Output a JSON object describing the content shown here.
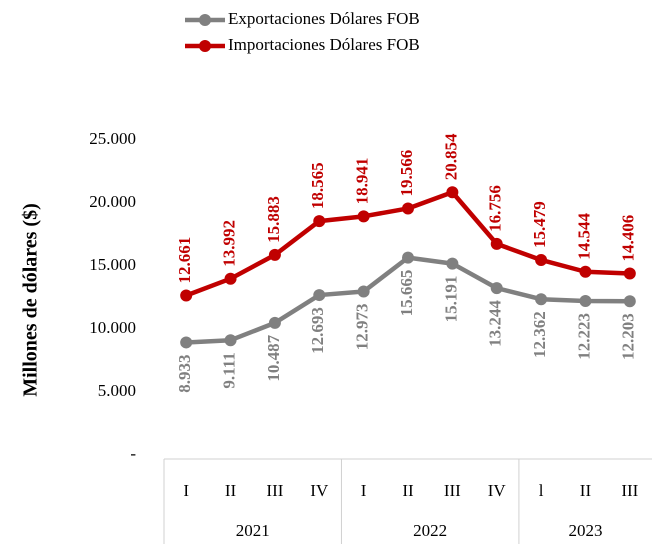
{
  "chart_data": {
    "type": "line",
    "y_axis_label": "Millones de dólares ($)",
    "groups": [
      {
        "name": "2021",
        "categories": [
          "I",
          "II",
          "III",
          "IV"
        ]
      },
      {
        "name": "2022",
        "categories": [
          "I",
          "II",
          "III",
          "IV"
        ]
      },
      {
        "name": "2023",
        "categories": [
          "l",
          "II",
          "III"
        ]
      }
    ],
    "series": [
      {
        "name": "Exportaciones Dólares FOB",
        "color": "#808080",
        "values": [
          8933,
          9111,
          10487,
          12693,
          12973,
          15665,
          15191,
          13244,
          12362,
          12223,
          12203
        ],
        "value_labels": [
          "8.933",
          "9.111",
          "10.487",
          "12.693",
          "12.973",
          "15.665",
          "15.191",
          "13.244",
          "12.362",
          "12.223",
          "12.203"
        ]
      },
      {
        "name": "Importaciones Dólares FOB",
        "color": "#c00000",
        "values": [
          12661,
          13992,
          15883,
          18565,
          18941,
          19566,
          20854,
          16756,
          15479,
          14544,
          14406
        ],
        "value_labels": [
          "12.661",
          "13.992",
          "15.883",
          "18.565",
          "18.941",
          "19.566",
          "20.854",
          "16.756",
          "15.479",
          "14.544",
          "14.406"
        ]
      }
    ],
    "ylim": [
      0,
      25000
    ],
    "yticks": [
      {
        "value": 0,
        "label": "-"
      },
      {
        "value": 5000,
        "label": "5.000"
      },
      {
        "value": 10000,
        "label": "10.000"
      },
      {
        "value": 15000,
        "label": "15.000"
      },
      {
        "value": 20000,
        "label": "20.000"
      },
      {
        "value": 25000,
        "label": "25.000"
      }
    ],
    "legend": "top"
  }
}
